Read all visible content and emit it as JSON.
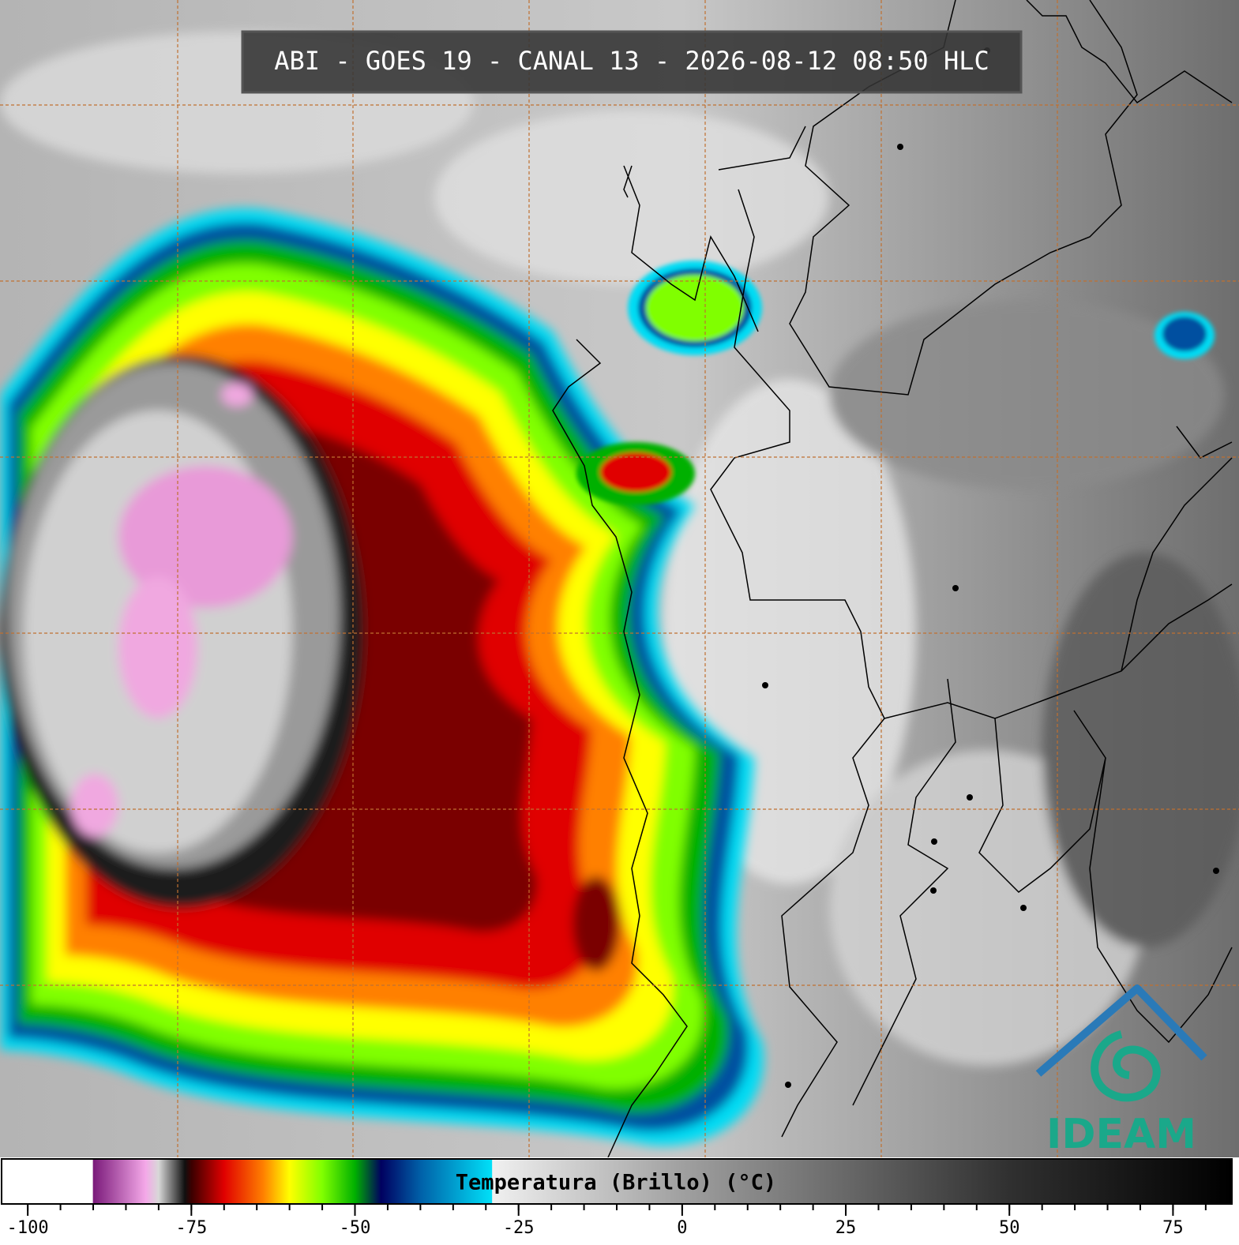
{
  "header": {
    "title": "ABI - GOES 19 - CANAL 13 - 2026-08-12 08:50 HLC"
  },
  "colorbar": {
    "label": "Temperatura (Brillo) (°C)",
    "lim": [
      -104,
      84
    ],
    "ticks": [
      -100,
      -75,
      -50,
      -25,
      0,
      25,
      50,
      75
    ],
    "minor_tick_step": 5,
    "colormap": [
      {
        "value": -104,
        "color": "#ffffff"
      },
      {
        "value": -90.1,
        "color": "#ffffff"
      },
      {
        "value": -90,
        "color": "#7a1a7a"
      },
      {
        "value": -82,
        "color": "#f4a8e8"
      },
      {
        "value": -80,
        "color": "#d8d8d8"
      },
      {
        "value": -76,
        "color": "#101010"
      },
      {
        "value": -75,
        "color": "#3a0000"
      },
      {
        "value": -70,
        "color": "#e00000"
      },
      {
        "value": -64,
        "color": "#ff8000"
      },
      {
        "value": -60,
        "color": "#ffff00"
      },
      {
        "value": -55,
        "color": "#80ff00"
      },
      {
        "value": -50,
        "color": "#00b000"
      },
      {
        "value": -46,
        "color": "#000060"
      },
      {
        "value": -40,
        "color": "#0060a8"
      },
      {
        "value": -29.1,
        "color": "#00e0f8"
      },
      {
        "value": -29,
        "color": "#f0f0f0"
      },
      {
        "value": 0,
        "color": "#a0a0a0"
      },
      {
        "value": 50,
        "color": "#303030"
      },
      {
        "value": 84,
        "color": "#000000"
      }
    ]
  },
  "logo": {
    "text": "IDEAM"
  }
}
